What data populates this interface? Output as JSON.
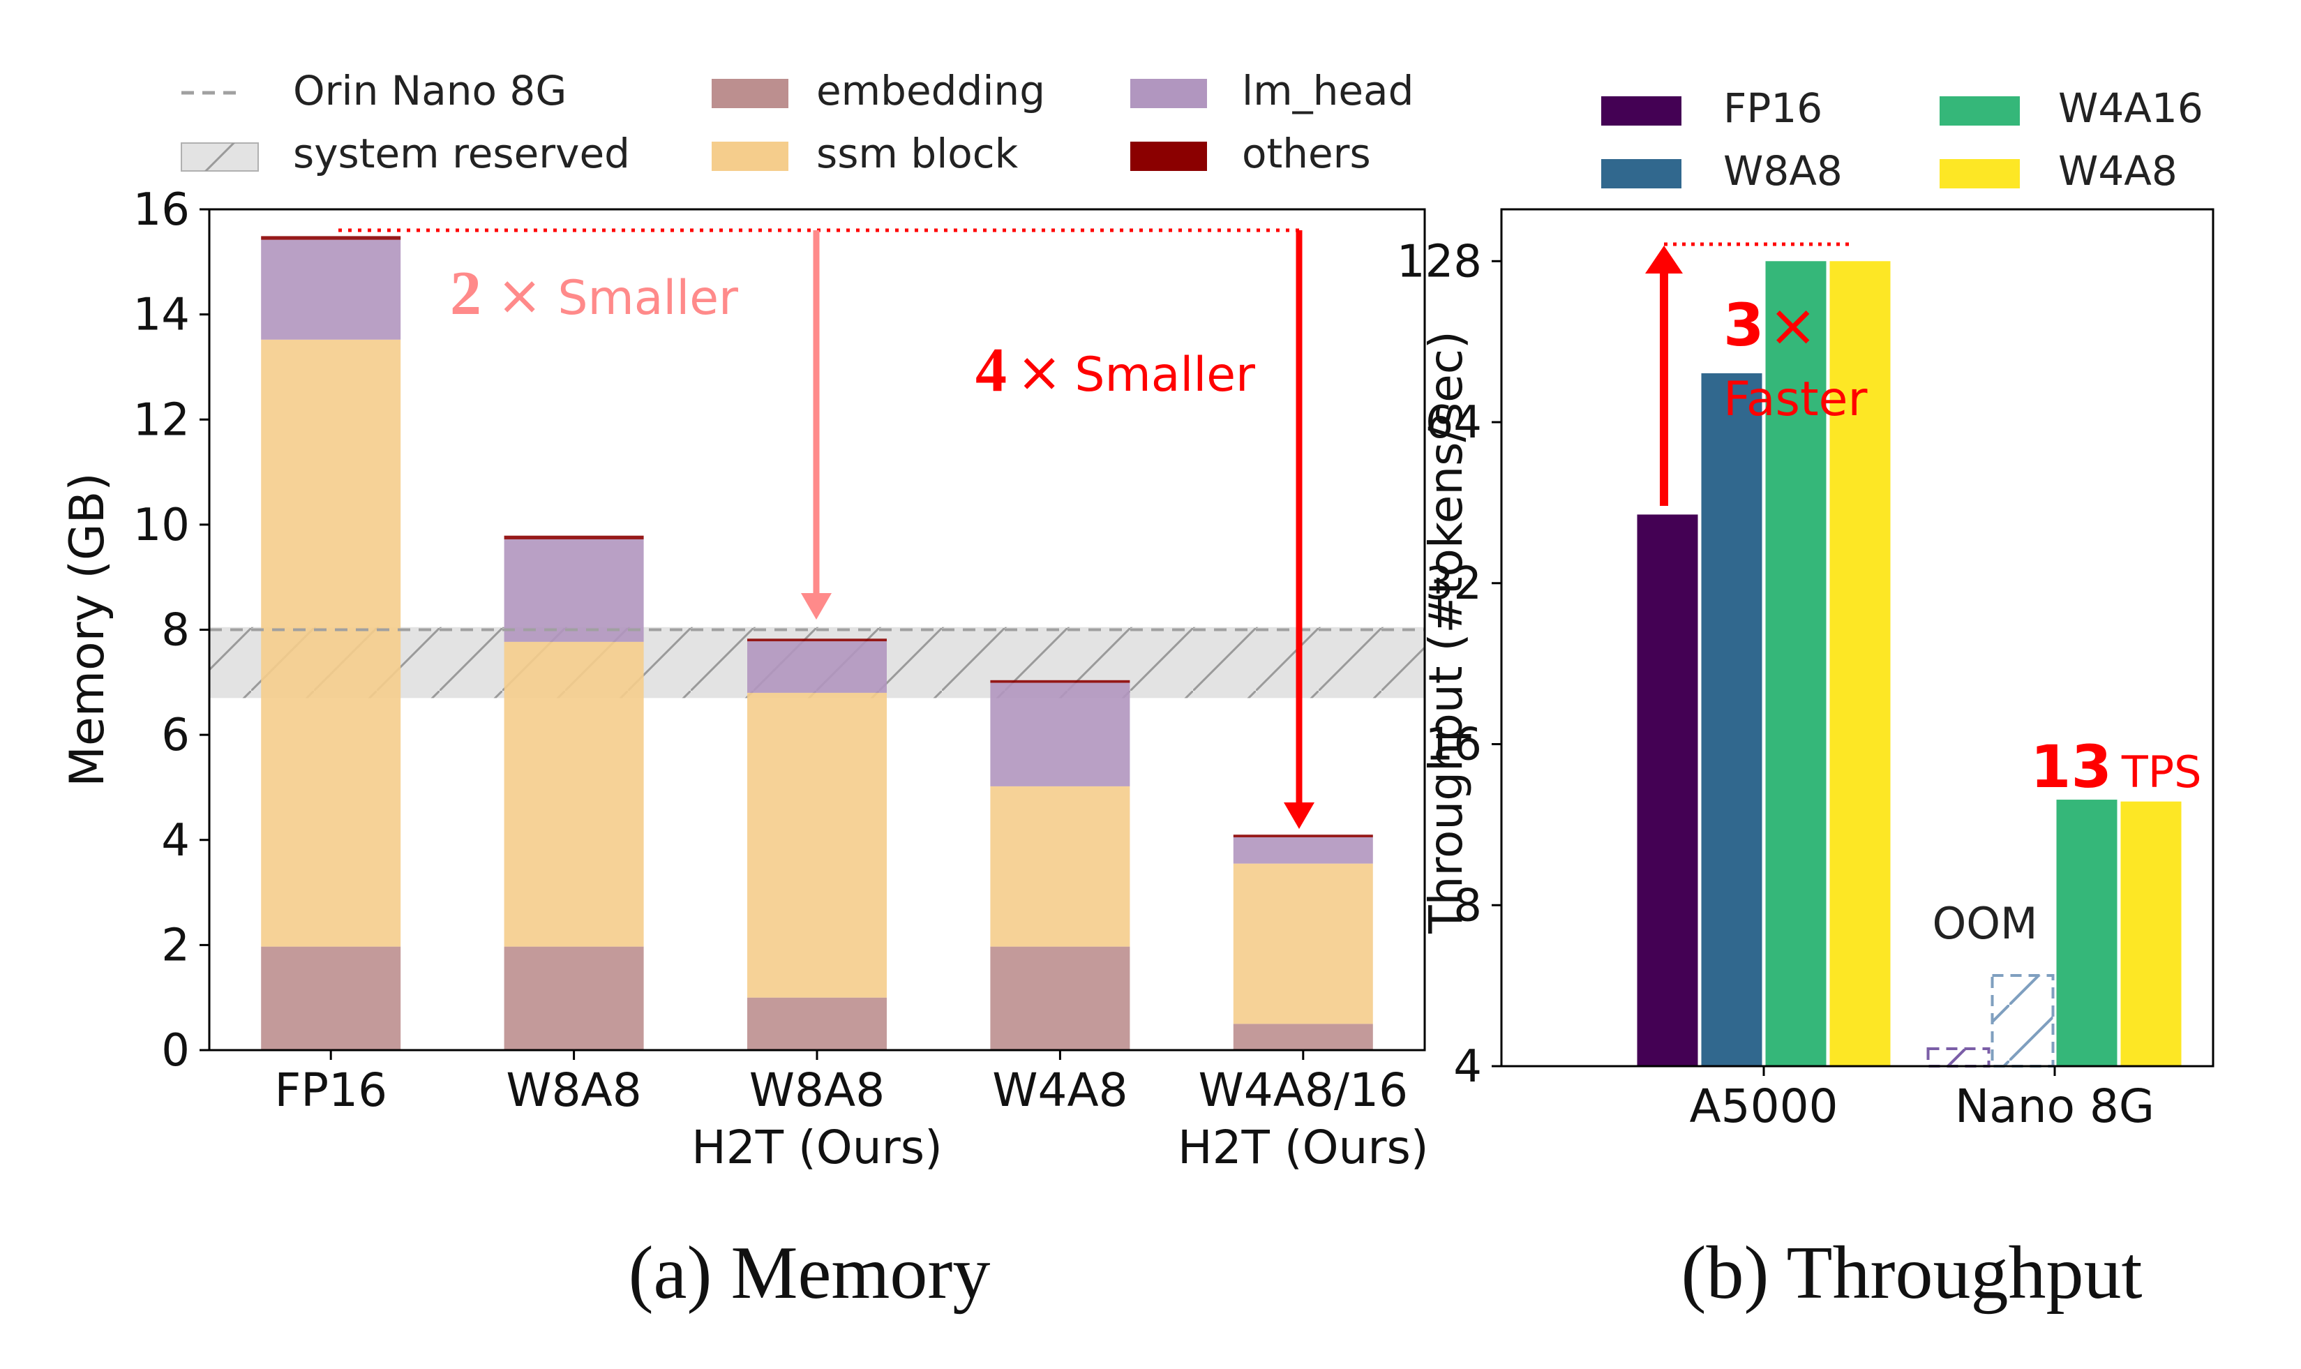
{
  "chart_data": [
    {
      "type": "bar",
      "stacked": true,
      "ylabel": "Memory (GB)",
      "ylim": [
        0,
        16
      ],
      "yticks": [
        "0",
        "2",
        "4",
        "6",
        "8",
        "10",
        "12",
        "14",
        "16"
      ],
      "categories": [
        "FP16",
        "W8A8",
        "W8A8\nH2T (Ours)",
        "W4A8",
        "W4A8/16\nH2T (Ours)"
      ],
      "series": [
        {
          "name": "embedding",
          "color": "#bc8f8f",
          "values": [
            1.97,
            1.97,
            1.0,
            1.97,
            0.5
          ]
        },
        {
          "name": "ssm block",
          "color": "#f5cd8c",
          "values": [
            11.55,
            5.8,
            5.8,
            3.05,
            3.05
          ]
        },
        {
          "name": "lm_head",
          "color": "#b196bf",
          "values": [
            1.9,
            1.95,
            0.98,
            1.97,
            0.5
          ]
        },
        {
          "name": "others",
          "color": "#8b0000",
          "values": [
            0.07,
            0.07,
            0.05,
            0.05,
            0.05
          ]
        }
      ],
      "reference": {
        "name": "Orin Nano 8G",
        "value": 8.0
      },
      "reserved_band": {
        "name": "system reserved",
        "from": 6.7,
        "to": 8.05
      },
      "annotations": [
        {
          "number": "2",
          "text": "Smaller"
        },
        {
          "number": "4",
          "text": "Smaller"
        }
      ],
      "caption": "(a) Memory"
    },
    {
      "type": "bar",
      "scale": "log2",
      "ylabel": "Throughput (#tokens/sec)",
      "ylim": [
        4,
        160
      ],
      "yticks": [
        "4",
        "8",
        "16",
        "32",
        "64",
        "128"
      ],
      "categories": [
        "A5000",
        "Nano 8G"
      ],
      "series": [
        {
          "name": "FP16",
          "color": "#440154",
          "values": [
            43,
            null
          ]
        },
        {
          "name": "W8A8",
          "color": "#31688e",
          "values": [
            79,
            null
          ]
        },
        {
          "name": "W4A16",
          "color": "#35b779",
          "values": [
            128,
            12.6
          ]
        },
        {
          "name": "W4A8",
          "color": "#fde725",
          "values": [
            128,
            12.5
          ]
        }
      ],
      "oom_label": "OOM",
      "annotations": [
        {
          "number": "3",
          "sign": "×",
          "text": "Faster"
        },
        {
          "number": "13",
          "text": "TPS"
        }
      ],
      "caption": "(b) Throughput"
    }
  ]
}
